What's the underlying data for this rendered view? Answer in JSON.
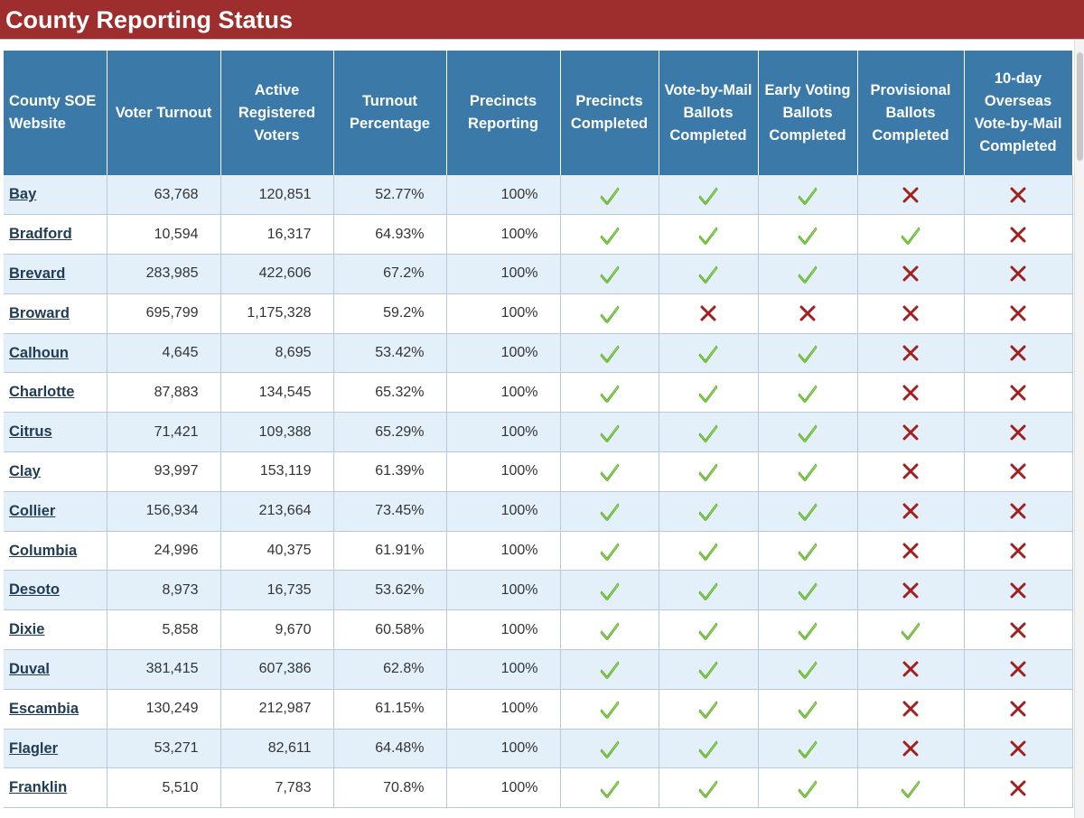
{
  "page": {
    "title": "County Reporting Status"
  },
  "colors": {
    "title_bar": "#9e2e2e",
    "header": "#3b79a9",
    "row_alt": "#e4f0f9",
    "check": "#7ccf3e",
    "cross": "#a11f1f"
  },
  "icons": {
    "true": "check-icon",
    "false": "cross-icon"
  },
  "table": {
    "headers": [
      "County SOE Website",
      "Voter Turnout",
      "Active Registered Voters",
      "Turnout Percentage",
      "Precincts Reporting",
      "Precincts Completed",
      "Vote-by-Mail Ballots Completed",
      "Early Voting Ballots Completed",
      "Provisional Ballots Completed",
      "10-day Overseas Vote-by-Mail Completed"
    ],
    "rows": [
      {
        "county": "Bay",
        "turnout": "63,768",
        "registered": "120,851",
        "percent": "52.77%",
        "reporting": "100%",
        "precincts_completed": true,
        "vbm_completed": true,
        "early_completed": true,
        "provisional_completed": false,
        "overseas_completed": false
      },
      {
        "county": "Bradford",
        "turnout": "10,594",
        "registered": "16,317",
        "percent": "64.93%",
        "reporting": "100%",
        "precincts_completed": true,
        "vbm_completed": true,
        "early_completed": true,
        "provisional_completed": true,
        "overseas_completed": false
      },
      {
        "county": "Brevard",
        "turnout": "283,985",
        "registered": "422,606",
        "percent": "67.2%",
        "reporting": "100%",
        "precincts_completed": true,
        "vbm_completed": true,
        "early_completed": true,
        "provisional_completed": false,
        "overseas_completed": false
      },
      {
        "county": "Broward",
        "turnout": "695,799",
        "registered": "1,175,328",
        "percent": "59.2%",
        "reporting": "100%",
        "precincts_completed": true,
        "vbm_completed": false,
        "early_completed": false,
        "provisional_completed": false,
        "overseas_completed": false
      },
      {
        "county": "Calhoun",
        "turnout": "4,645",
        "registered": "8,695",
        "percent": "53.42%",
        "reporting": "100%",
        "precincts_completed": true,
        "vbm_completed": true,
        "early_completed": true,
        "provisional_completed": false,
        "overseas_completed": false
      },
      {
        "county": "Charlotte",
        "turnout": "87,883",
        "registered": "134,545",
        "percent": "65.32%",
        "reporting": "100%",
        "precincts_completed": true,
        "vbm_completed": true,
        "early_completed": true,
        "provisional_completed": false,
        "overseas_completed": false
      },
      {
        "county": "Citrus",
        "turnout": "71,421",
        "registered": "109,388",
        "percent": "65.29%",
        "reporting": "100%",
        "precincts_completed": true,
        "vbm_completed": true,
        "early_completed": true,
        "provisional_completed": false,
        "overseas_completed": false
      },
      {
        "county": "Clay",
        "turnout": "93,997",
        "registered": "153,119",
        "percent": "61.39%",
        "reporting": "100%",
        "precincts_completed": true,
        "vbm_completed": true,
        "early_completed": true,
        "provisional_completed": false,
        "overseas_completed": false
      },
      {
        "county": "Collier",
        "turnout": "156,934",
        "registered": "213,664",
        "percent": "73.45%",
        "reporting": "100%",
        "precincts_completed": true,
        "vbm_completed": true,
        "early_completed": true,
        "provisional_completed": false,
        "overseas_completed": false
      },
      {
        "county": "Columbia",
        "turnout": "24,996",
        "registered": "40,375",
        "percent": "61.91%",
        "reporting": "100%",
        "precincts_completed": true,
        "vbm_completed": true,
        "early_completed": true,
        "provisional_completed": false,
        "overseas_completed": false
      },
      {
        "county": "Desoto",
        "turnout": "8,973",
        "registered": "16,735",
        "percent": "53.62%",
        "reporting": "100%",
        "precincts_completed": true,
        "vbm_completed": true,
        "early_completed": true,
        "provisional_completed": false,
        "overseas_completed": false
      },
      {
        "county": "Dixie",
        "turnout": "5,858",
        "registered": "9,670",
        "percent": "60.58%",
        "reporting": "100%",
        "precincts_completed": true,
        "vbm_completed": true,
        "early_completed": true,
        "provisional_completed": true,
        "overseas_completed": false
      },
      {
        "county": "Duval",
        "turnout": "381,415",
        "registered": "607,386",
        "percent": "62.8%",
        "reporting": "100%",
        "precincts_completed": true,
        "vbm_completed": true,
        "early_completed": true,
        "provisional_completed": false,
        "overseas_completed": false
      },
      {
        "county": "Escambia",
        "turnout": "130,249",
        "registered": "212,987",
        "percent": "61.15%",
        "reporting": "100%",
        "precincts_completed": true,
        "vbm_completed": true,
        "early_completed": true,
        "provisional_completed": false,
        "overseas_completed": false
      },
      {
        "county": "Flagler",
        "turnout": "53,271",
        "registered": "82,611",
        "percent": "64.48%",
        "reporting": "100%",
        "precincts_completed": true,
        "vbm_completed": true,
        "early_completed": true,
        "provisional_completed": false,
        "overseas_completed": false
      },
      {
        "county": "Franklin",
        "turnout": "5,510",
        "registered": "7,783",
        "percent": "70.8%",
        "reporting": "100%",
        "precincts_completed": true,
        "vbm_completed": true,
        "early_completed": true,
        "provisional_completed": true,
        "overseas_completed": false
      }
    ]
  }
}
